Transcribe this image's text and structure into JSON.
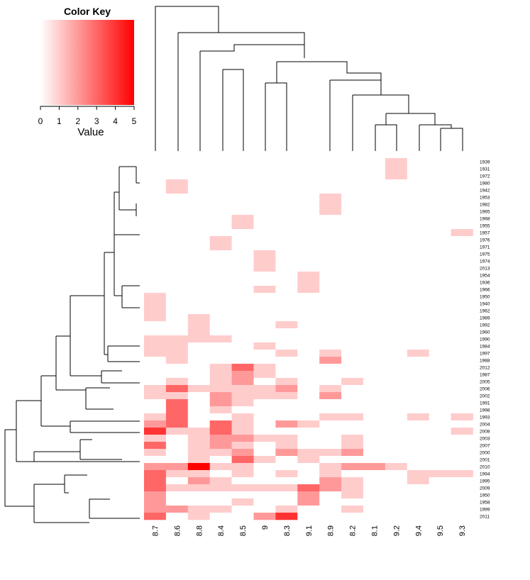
{
  "chart_data": {
    "type": "heatmap",
    "title": "",
    "xlabel": "",
    "ylabel": "",
    "columns": [
      "8.7",
      "8.6",
      "8.8",
      "8.4",
      "8.5",
      "9",
      "8.3",
      "9.1",
      "8.9",
      "8.2",
      "8.1",
      "9.2",
      "9.4",
      "9.5",
      "9.3"
    ],
    "rows": [
      "1939",
      "1931",
      "1972",
      "1980",
      "1942",
      "1953",
      "1982",
      "1965",
      "1968",
      "1955",
      "1957",
      "1976",
      "1971",
      "1975",
      "1974",
      "2013",
      "1954",
      "1936",
      "1966",
      "1950",
      "1940",
      "1962",
      "1989",
      "1992",
      "1960",
      "1990",
      "1984",
      "1997",
      "1988",
      "2012",
      "1987",
      "2005",
      "2006",
      "2002",
      "1991",
      "1998",
      "1993",
      "2004",
      "2008",
      "2003",
      "2007",
      "2000",
      "2001",
      "2010",
      "1994",
      "1995",
      "2009",
      "1950",
      "1958",
      "1999",
      "2011"
    ],
    "value_range": [
      0,
      5
    ],
    "color_scale": {
      "low": "#ffffff",
      "high": "#ff0000"
    },
    "cells": [
      [
        0,
        0,
        0,
        0,
        0,
        0,
        0,
        0,
        0,
        0,
        0,
        1,
        0,
        0,
        0
      ],
      [
        0,
        0,
        0,
        0,
        0,
        0,
        0,
        0,
        0,
        0,
        0,
        1,
        0,
        0,
        0
      ],
      [
        0,
        0,
        0,
        0,
        0,
        0,
        0,
        0,
        0,
        0,
        0,
        1,
        0,
        0,
        0
      ],
      [
        0,
        1,
        0,
        0,
        0,
        0,
        0,
        0,
        0,
        0,
        0,
        0,
        0,
        0,
        0
      ],
      [
        0,
        1,
        0,
        0,
        0,
        0,
        0,
        0,
        0,
        0,
        0,
        0,
        0,
        0,
        0
      ],
      [
        0,
        0,
        0,
        0,
        0,
        0,
        0,
        0,
        1,
        0,
        0,
        0,
        0,
        0,
        0
      ],
      [
        0,
        0,
        0,
        0,
        0,
        0,
        0,
        0,
        1,
        0,
        0,
        0,
        0,
        0,
        0
      ],
      [
        0,
        0,
        0,
        0,
        0,
        0,
        0,
        0,
        1,
        0,
        0,
        0,
        0,
        0,
        0
      ],
      [
        0,
        0,
        0,
        0,
        1,
        0,
        0,
        0,
        0,
        0,
        0,
        0,
        0,
        0,
        0
      ],
      [
        0,
        0,
        0,
        0,
        1,
        0,
        0,
        0,
        0,
        0,
        0,
        0,
        0,
        0,
        0
      ],
      [
        0,
        0,
        0,
        0,
        0,
        0,
        0,
        0,
        0,
        0,
        0,
        0,
        0,
        0,
        1
      ],
      [
        0,
        0,
        0,
        1,
        0,
        0,
        0,
        0,
        0,
        0,
        0,
        0,
        0,
        0,
        0
      ],
      [
        0,
        0,
        0,
        1,
        0,
        0,
        0,
        0,
        0,
        0,
        0,
        0,
        0,
        0,
        0
      ],
      [
        0,
        0,
        0,
        0,
        0,
        1,
        0,
        0,
        0,
        0,
        0,
        0,
        0,
        0,
        0
      ],
      [
        0,
        0,
        0,
        0,
        0,
        1,
        0,
        0,
        0,
        0,
        0,
        0,
        0,
        0,
        0
      ],
      [
        0,
        0,
        0,
        0,
        0,
        1,
        0,
        0,
        0,
        0,
        0,
        0,
        0,
        0,
        0
      ],
      [
        0,
        0,
        0,
        0,
        0,
        0,
        0,
        1,
        0,
        0,
        0,
        0,
        0,
        0,
        0
      ],
      [
        0,
        0,
        0,
        0,
        0,
        0,
        0,
        1,
        0,
        0,
        0,
        0,
        0,
        0,
        0
      ],
      [
        0,
        0,
        0,
        0,
        0,
        1,
        0,
        1,
        0,
        0,
        0,
        0,
        0,
        0,
        0
      ],
      [
        1,
        0,
        0,
        0,
        0,
        0,
        0,
        0,
        0,
        0,
        0,
        0,
        0,
        0,
        0
      ],
      [
        1,
        0,
        0,
        0,
        0,
        0,
        0,
        0,
        0,
        0,
        0,
        0,
        0,
        0,
        0
      ],
      [
        1,
        0,
        0,
        0,
        0,
        0,
        0,
        0,
        0,
        0,
        0,
        0,
        0,
        0,
        0
      ],
      [
        1,
        0,
        1,
        0,
        0,
        0,
        0,
        0,
        0,
        0,
        0,
        0,
        0,
        0,
        0
      ],
      [
        0,
        0,
        1,
        0,
        0,
        0,
        1,
        0,
        0,
        0,
        0,
        0,
        0,
        0,
        0
      ],
      [
        0,
        0,
        1,
        0,
        0,
        0,
        0,
        0,
        0,
        0,
        0,
        0,
        0,
        0,
        0
      ],
      [
        1,
        1,
        1,
        1,
        0,
        0,
        0,
        0,
        0,
        0,
        0,
        0,
        0,
        0,
        0
      ],
      [
        1,
        1,
        0,
        0,
        0,
        1,
        0,
        0,
        0,
        0,
        0,
        0,
        0,
        0,
        0
      ],
      [
        1,
        1,
        0,
        0,
        0,
        0,
        1,
        0,
        1,
        0,
        0,
        0,
        1,
        0,
        0
      ],
      [
        0,
        1,
        0,
        0,
        0,
        0,
        0,
        0,
        2,
        0,
        0,
        0,
        0,
        0,
        0
      ],
      [
        0,
        0,
        0,
        1,
        3,
        1,
        0,
        0,
        0,
        0,
        0,
        0,
        0,
        0,
        0
      ],
      [
        0,
        0,
        0,
        1,
        2,
        1,
        0,
        0,
        0,
        0,
        0,
        0,
        0,
        0,
        0
      ],
      [
        0,
        1,
        0,
        1,
        2,
        0,
        1,
        0,
        0,
        1,
        0,
        0,
        0,
        0,
        0
      ],
      [
        1,
        3,
        1,
        1,
        1,
        1,
        2,
        0,
        1,
        0,
        0,
        0,
        0,
        0,
        0
      ],
      [
        1,
        1,
        0,
        2,
        1,
        1,
        1,
        0,
        2,
        0,
        0,
        0,
        0,
        0,
        0
      ],
      [
        0,
        3,
        0,
        2,
        1,
        0,
        0,
        0,
        0,
        0,
        0,
        0,
        0,
        0,
        0
      ],
      [
        0,
        3,
        0,
        1,
        0,
        0,
        0,
        0,
        0,
        0,
        0,
        0,
        0,
        0,
        0
      ],
      [
        1,
        3,
        0,
        0,
        1,
        0,
        0,
        0,
        1,
        1,
        0,
        0,
        1,
        0,
        1
      ],
      [
        2,
        3,
        0,
        3,
        1,
        0,
        2,
        1,
        0,
        0,
        0,
        0,
        0,
        0,
        0
      ],
      [
        4,
        1,
        1,
        3,
        1,
        0,
        0,
        0,
        0,
        0,
        0,
        0,
        0,
        0,
        1
      ],
      [
        1,
        0,
        1,
        2,
        2,
        1,
        1,
        0,
        0,
        1,
        0,
        0,
        0,
        0,
        0
      ],
      [
        3,
        0,
        1,
        2,
        1,
        0,
        1,
        0,
        0,
        1,
        0,
        0,
        0,
        0,
        0
      ],
      [
        1,
        0,
        1,
        1,
        2,
        0,
        2,
        1,
        1,
        2,
        0,
        0,
        0,
        0,
        0
      ],
      [
        0,
        0,
        1,
        0,
        3,
        1,
        0,
        1,
        0,
        0,
        0,
        0,
        0,
        0,
        0
      ],
      [
        2,
        2,
        5,
        1,
        1,
        0,
        0,
        0,
        1,
        2,
        2,
        1,
        0,
        0,
        0
      ],
      [
        3,
        1,
        1,
        0,
        1,
        0,
        1,
        0,
        1,
        0,
        0,
        0,
        1,
        1,
        1
      ],
      [
        3,
        0,
        2,
        1,
        0,
        0,
        0,
        0,
        2,
        1,
        0,
        0,
        1,
        0,
        0
      ],
      [
        3,
        1,
        1,
        1,
        1,
        1,
        1,
        3,
        2,
        1,
        0,
        0,
        0,
        0,
        0
      ],
      [
        2,
        0,
        0,
        0,
        0,
        0,
        0,
        2,
        0,
        1,
        0,
        0,
        0,
        0,
        0
      ],
      [
        2,
        0,
        0,
        0,
        1,
        0,
        0,
        2,
        0,
        0,
        0,
        0,
        0,
        0,
        0
      ],
      [
        2,
        2,
        1,
        1,
        0,
        0,
        1,
        0,
        0,
        1,
        0,
        0,
        0,
        0,
        0
      ],
      [
        3,
        0,
        1,
        0,
        0,
        2,
        4,
        0,
        0,
        0,
        0,
        0,
        0,
        0,
        0
      ]
    ],
    "color_key": {
      "title": "Color Key",
      "xlabel": "Value",
      "ticks": [
        "0",
        "1",
        "2",
        "3",
        "4",
        "5"
      ]
    }
  }
}
